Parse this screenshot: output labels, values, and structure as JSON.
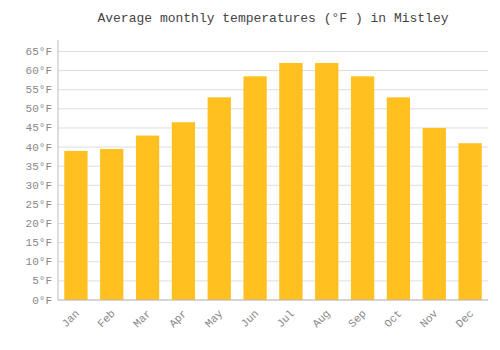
{
  "chart_data": {
    "type": "bar",
    "title": "Average monthly temperatures (°F ) in Mistley",
    "categories": [
      "Jan",
      "Feb",
      "Mar",
      "Apr",
      "May",
      "Jun",
      "Jul",
      "Aug",
      "Sep",
      "Oct",
      "Nov",
      "Dec"
    ],
    "values": [
      39,
      39.5,
      43,
      46.5,
      53,
      58.5,
      62,
      62,
      58.5,
      53,
      45,
      41
    ],
    "color": "#FFC020",
    "ylim": [
      0,
      68
    ],
    "yticks": [
      {
        "value": 0,
        "label": "0°F"
      },
      {
        "value": 5,
        "label": "5°F"
      },
      {
        "value": 10,
        "label": "10°F"
      },
      {
        "value": 15,
        "label": "15°F"
      },
      {
        "value": 20,
        "label": "20°F"
      },
      {
        "value": 25,
        "label": "25°F"
      },
      {
        "value": 30,
        "label": "30°F"
      },
      {
        "value": 35,
        "label": "35°F"
      },
      {
        "value": 40,
        "label": "40°F"
      },
      {
        "value": 45,
        "label": "45°F"
      },
      {
        "value": 50,
        "label": "50°F"
      },
      {
        "value": 55,
        "label": "55°F"
      },
      {
        "value": 60,
        "label": "60°F"
      },
      {
        "value": 65,
        "label": "65°F"
      }
    ],
    "grid": true
  }
}
